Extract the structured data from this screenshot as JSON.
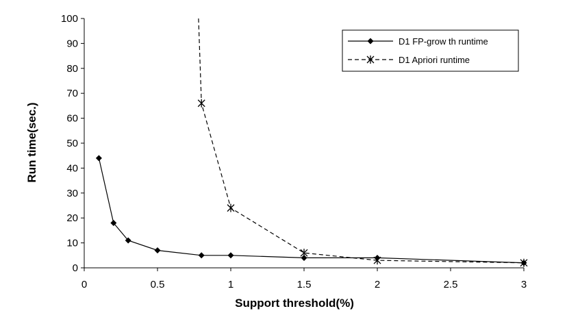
{
  "chart_data": {
    "type": "line",
    "xlabel": "Support threshold(%)",
    "ylabel": "Run time(sec.)",
    "xlim": [
      0,
      3
    ],
    "ylim": [
      0,
      100
    ],
    "xticks": [
      "0",
      "0.5",
      "1",
      "1.5",
      "2",
      "2.5",
      "3"
    ],
    "yticks": [
      "0",
      "10",
      "20",
      "30",
      "40",
      "50",
      "60",
      "70",
      "80",
      "90",
      "100"
    ],
    "grid": false,
    "legend_position": "top-right",
    "series": [
      {
        "name": "D1 FP-grow th runtime",
        "style": "solid",
        "marker": "diamond",
        "color": "#000000",
        "x": [
          0.1,
          0.2,
          0.3,
          0.5,
          0.8,
          1,
          1.5,
          2,
          3
        ],
        "y": [
          44,
          18,
          11,
          7,
          5,
          5,
          4,
          4,
          2
        ]
      },
      {
        "name": "D1 Apriori runtime",
        "style": "dashed",
        "marker": "asterisk",
        "color": "#000000",
        "x": [
          0.78,
          0.8,
          1,
          1.5,
          2,
          3
        ],
        "y": [
          100,
          66,
          24,
          6,
          3,
          2
        ],
        "marked_points": [
          false,
          true,
          true,
          true,
          true,
          true
        ]
      }
    ]
  }
}
